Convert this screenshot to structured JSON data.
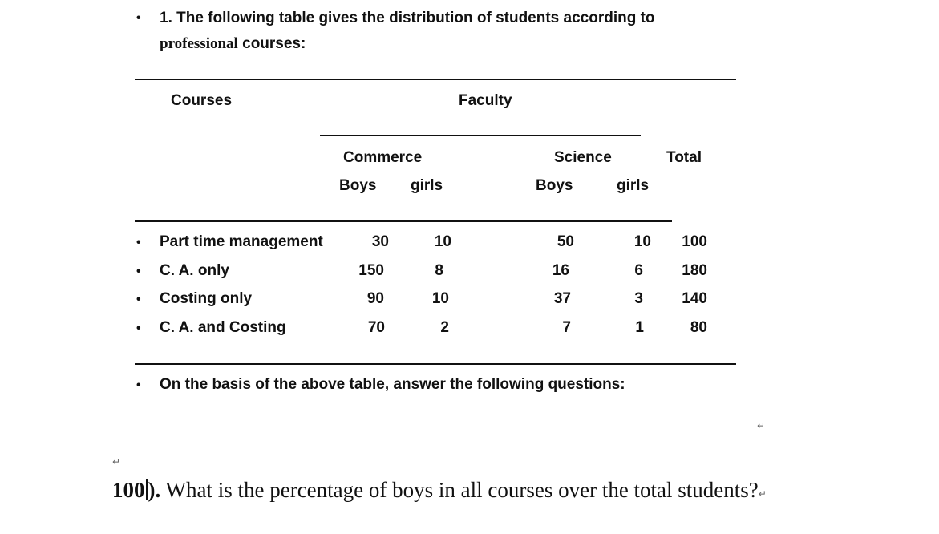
{
  "question_intro": {
    "line1": "1. The following table gives the distribution of students according to",
    "line2_serif": "professional",
    "line2_rest": " courses:"
  },
  "table": {
    "header_courses": "Courses",
    "header_faculty": "Faculty",
    "header_commerce": "Commerce",
    "header_science": "Science",
    "header_total": "Total",
    "sub_boys": "Boys",
    "sub_girls": "girls",
    "rows": [
      {
        "label": "Part time management",
        "c_boys": "30",
        "c_girls": "10",
        "s_boys": "50",
        "s_girls": "10",
        "total": "100"
      },
      {
        "label": "C. A. only",
        "c_boys": "150",
        "c_girls": "8",
        "s_boys": "16",
        "s_girls": "6",
        "total": "180"
      },
      {
        "label": "Costing only",
        "c_boys": "90",
        "c_girls": "10",
        "s_boys": "37",
        "s_girls": "3",
        "total": "140"
      },
      {
        "label": "C. A. and Costing",
        "c_boys": "70",
        "c_girls": "2",
        "s_boys": "7",
        "s_girls": "1",
        "total": "80"
      }
    ]
  },
  "instruction": "On the basis of the above table, answer the following questions:",
  "final_question": {
    "number_a": "100",
    "number_b": ").",
    "text": " What is the percentage of boys in all courses over the total students?"
  },
  "glyphs": {
    "bullet": "•",
    "return_mark": "↵"
  }
}
